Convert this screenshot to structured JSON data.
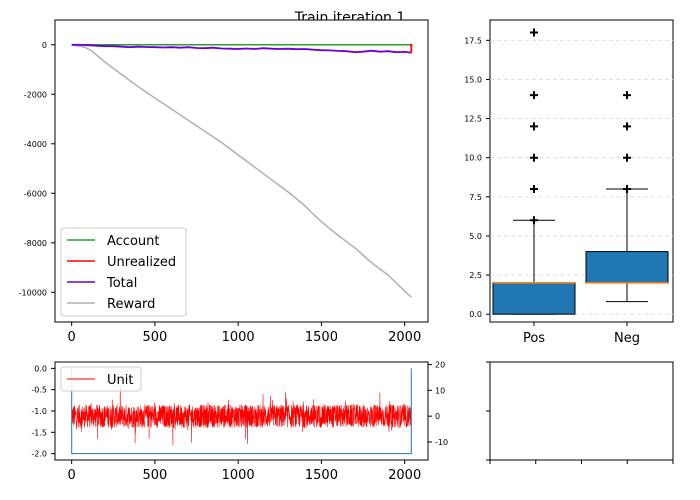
{
  "figure": {
    "title": "Train iteration 1"
  },
  "chart_data": [
    {
      "id": "equity",
      "type": "line",
      "xlim": [
        -100,
        2140
      ],
      "ylim": [
        -11200,
        1000
      ],
      "xticks": [
        0,
        500,
        1000,
        1500,
        2000
      ],
      "yticks": [
        0,
        -2000,
        -4000,
        -6000,
        -8000,
        -10000
      ],
      "legend": {
        "placement": "lower-left",
        "entries": [
          "Account",
          "Unrealized",
          "Total",
          "Reward"
        ]
      },
      "series": [
        {
          "name": "Account",
          "color": "#2ca02c",
          "x": [
            0,
            2040
          ],
          "y": [
            0,
            0
          ]
        },
        {
          "name": "Unrealized",
          "color": "#ff0000",
          "x": [
            2030,
            2040,
            2040
          ],
          "y": [
            0,
            0,
            -320
          ]
        },
        {
          "name": "Total",
          "color": "#6a00d6",
          "x": [
            0,
            50,
            100,
            150,
            200,
            250,
            300,
            350,
            400,
            450,
            500,
            550,
            600,
            650,
            700,
            750,
            800,
            850,
            900,
            950,
            1000,
            1050,
            1100,
            1150,
            1200,
            1250,
            1300,
            1350,
            1400,
            1450,
            1500,
            1550,
            1600,
            1650,
            1700,
            1750,
            1800,
            1850,
            1900,
            1950,
            2000,
            2040
          ],
          "y": [
            0,
            0,
            -20,
            -40,
            -60,
            -60,
            -80,
            -100,
            -80,
            -90,
            -100,
            -110,
            -100,
            -120,
            -100,
            -130,
            -140,
            -120,
            -150,
            -160,
            -170,
            -150,
            -170,
            -140,
            -160,
            -170,
            -160,
            -180,
            -170,
            -200,
            -220,
            -230,
            -250,
            -260,
            -300,
            -280,
            -240,
            -280,
            -260,
            -300,
            -290,
            -320
          ]
        },
        {
          "name": "Reward",
          "color": "#b0b0b0",
          "x": [
            0,
            80,
            120,
            200,
            300,
            400,
            500,
            600,
            700,
            800,
            900,
            1000,
            1100,
            1200,
            1300,
            1400,
            1460,
            1500,
            1600,
            1700,
            1800,
            1900,
            2000,
            2040
          ],
          "y": [
            0,
            -100,
            -250,
            -700,
            -1200,
            -1700,
            -2150,
            -2600,
            -3050,
            -3500,
            -3950,
            -4450,
            -4950,
            -5450,
            -5950,
            -6500,
            -6900,
            -7150,
            -7700,
            -8200,
            -8800,
            -9300,
            -9950,
            -10200
          ]
        }
      ]
    },
    {
      "id": "boxplot",
      "type": "box",
      "categories": [
        "Pos",
        "Neg"
      ],
      "ylim": [
        -0.5,
        18.8
      ],
      "yticks": [
        0.0,
        2.5,
        5.0,
        7.5,
        10.0,
        12.5,
        15.0,
        17.5
      ],
      "ytick_labels": [
        "0.0",
        "2.5",
        "5.0",
        "7.5",
        "10.0",
        "12.5",
        "15.0",
        "17.5"
      ],
      "grid": true,
      "box_color": "#1f77b4",
      "median_color": "#ff7f0e",
      "boxes": [
        {
          "label": "Pos",
          "q1": 0,
          "median": 2,
          "q3": 2,
          "whisker_low": 0,
          "whisker_high": 6,
          "fliers": [
            6,
            8,
            10,
            12,
            14,
            18
          ]
        },
        {
          "label": "Neg",
          "q1": 2,
          "median": 2,
          "q3": 4,
          "whisker_low": 0.8,
          "whisker_high": 8,
          "fliers": [
            8,
            10,
            12,
            14
          ]
        }
      ]
    },
    {
      "id": "unit",
      "type": "line",
      "xlim": [
        -100,
        2140
      ],
      "ylim": [
        -2.15,
        0.15
      ],
      "xticks": [
        0,
        500,
        1000,
        1500,
        2000
      ],
      "yticks": [
        0.0,
        -0.5,
        -1.0,
        -1.5,
        -2.0
      ],
      "ytick_labels": [
        "0.0",
        "-0.5",
        "-1.0",
        "-1.5",
        "-2.0"
      ],
      "y2lim": [
        -17,
        21
      ],
      "y2ticks": [
        20,
        10,
        0,
        -10
      ],
      "legend": {
        "placement": "top-left",
        "entries": [
          "Unit"
        ]
      },
      "series": [
        {
          "name": "Unit",
          "color": "#ff0000",
          "axis": "right",
          "n": 2040,
          "center": 0,
          "noise": 4.5
        },
        {
          "color": "#1f77b4",
          "axis": "left",
          "x": [
            0,
            0,
            2040,
            2040
          ],
          "y": [
            0,
            -2,
            -2,
            0
          ]
        }
      ]
    },
    {
      "id": "empty",
      "type": "line",
      "series": []
    }
  ]
}
